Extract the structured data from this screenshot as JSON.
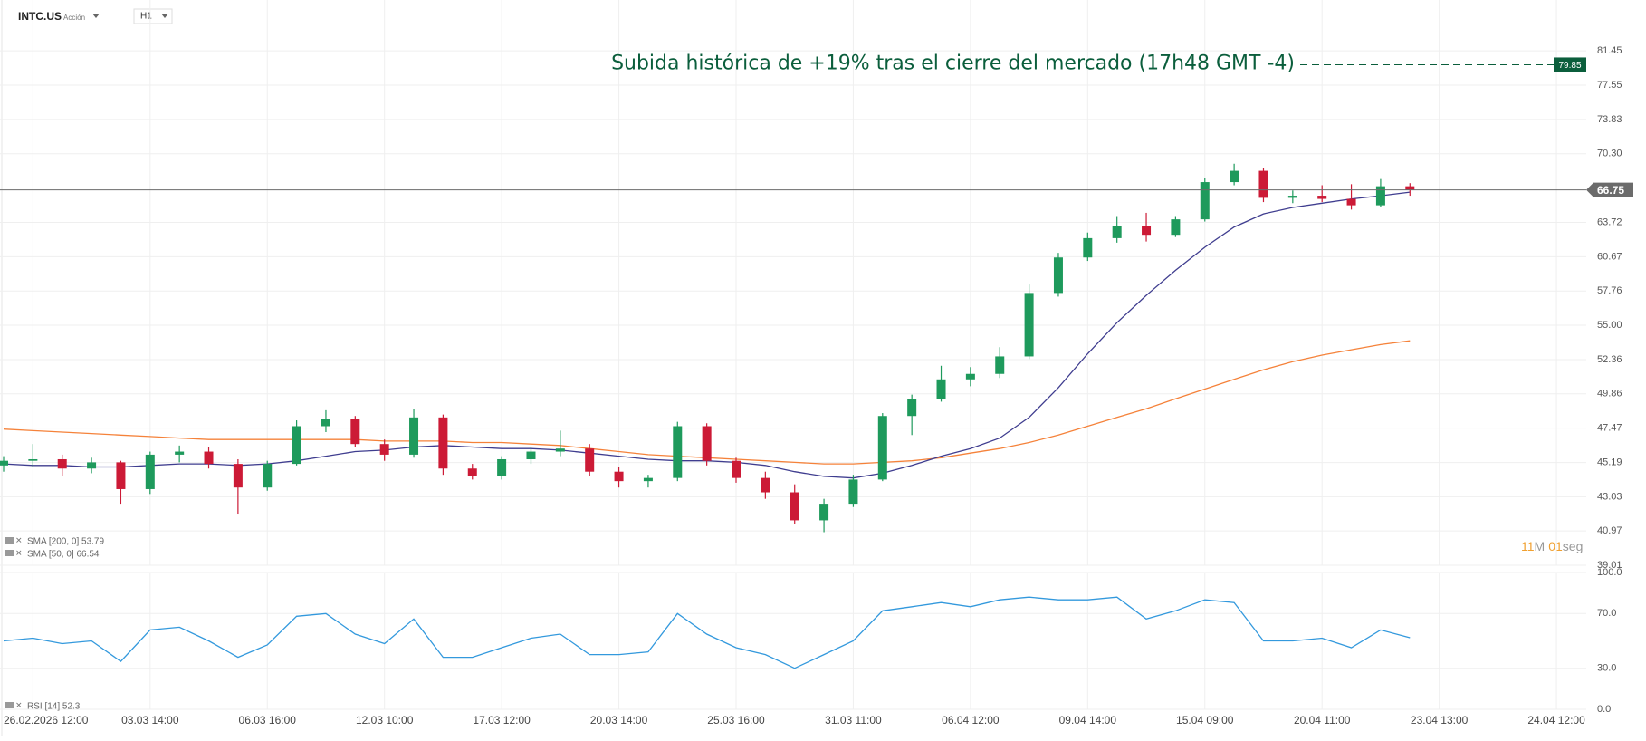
{
  "header": {
    "symbol": "INTC.US",
    "kind": "Acción",
    "timeframe": "H1"
  },
  "timer": {
    "minutes": "11",
    "min_unit": "M",
    "seconds": "01",
    "sec_unit": "seg"
  },
  "chart_data": [
    {
      "type": "candlestick",
      "categories": [
        null,
        "26.02.2026 12:00",
        null,
        null,
        null,
        "03.03 14:00",
        null,
        null,
        null,
        "06.03 16:00",
        null,
        null,
        null,
        "12.03 10:00",
        null,
        null,
        null,
        "17.03 12:00",
        null,
        null,
        null,
        "20.03 14:00",
        null,
        null,
        null,
        "25.03 16:00",
        null,
        null,
        null,
        "31.03 11:00",
        null,
        null,
        null,
        "06.04 12:00",
        null,
        null,
        null,
        "09.04 14:00",
        null,
        null,
        null,
        "15.04 09:00",
        null,
        null,
        null,
        "20.04 11:00",
        null,
        null,
        null,
        "23.04 13:00",
        null,
        null,
        null,
        "24.04 12:00"
      ],
      "open": [
        45.0,
        45.3,
        45.4,
        44.8,
        45.2,
        43.5,
        45.7,
        45.9,
        45.1,
        43.6,
        45.1,
        47.6,
        48.1,
        46.4,
        45.7,
        48.2,
        44.8,
        44.3,
        45.4,
        45.9,
        46.1,
        44.6,
        44.0,
        44.2,
        47.6,
        45.3,
        44.2,
        43.3,
        41.6,
        42.6,
        44.1,
        48.3,
        49.5,
        50.9,
        51.3,
        52.6,
        57.6,
        60.6,
        62.3,
        63.4,
        62.6,
        64.0,
        67.5,
        68.6,
        66.0,
        66.2,
        65.9,
        65.3,
        67.1,
        null,
        null,
        null,
        null,
        null
      ],
      "high": [
        45.6,
        46.4,
        45.7,
        45.5,
        45.3,
        45.9,
        46.3,
        46.2,
        45.4,
        45.3,
        48.0,
        48.7,
        48.3,
        46.7,
        48.8,
        48.4,
        45.1,
        45.6,
        46.2,
        47.3,
        46.4,
        44.9,
        44.4,
        47.9,
        47.8,
        45.5,
        44.6,
        43.8,
        42.9,
        44.4,
        48.5,
        49.8,
        51.9,
        51.8,
        53.3,
        58.3,
        61.0,
        62.8,
        64.3,
        64.6,
        64.3,
        67.9,
        69.3,
        68.9,
        66.7,
        67.2,
        67.3,
        67.8,
        67.4,
        null,
        null,
        null,
        null,
        null
      ],
      "low": [
        44.6,
        44.9,
        44.3,
        44.5,
        42.6,
        43.2,
        45.2,
        44.8,
        42.0,
        43.4,
        45.0,
        47.2,
        46.2,
        45.3,
        45.5,
        44.4,
        44.1,
        44.1,
        45.1,
        45.6,
        44.3,
        43.6,
        43.6,
        44.0,
        45.0,
        43.9,
        42.9,
        41.4,
        40.9,
        42.4,
        44.0,
        47.0,
        49.3,
        50.4,
        51.0,
        52.4,
        57.3,
        60.3,
        61.9,
        62.0,
        62.4,
        63.8,
        67.2,
        65.6,
        65.5,
        65.6,
        64.9,
        65.1,
        66.2,
        null,
        null,
        null,
        null,
        null
      ],
      "close": [
        45.3,
        45.4,
        44.8,
        45.2,
        43.5,
        45.7,
        45.9,
        45.1,
        43.6,
        45.1,
        47.6,
        48.1,
        46.4,
        45.7,
        48.2,
        44.8,
        44.3,
        45.4,
        45.9,
        46.1,
        44.6,
        44.0,
        44.2,
        47.6,
        45.3,
        44.2,
        43.3,
        41.6,
        42.6,
        44.1,
        48.3,
        49.5,
        50.9,
        51.3,
        52.6,
        57.6,
        60.6,
        62.3,
        63.4,
        62.6,
        64.0,
        67.5,
        68.6,
        66.0,
        66.2,
        65.9,
        65.3,
        67.1,
        66.75,
        null,
        null,
        null,
        null,
        null
      ],
      "up_color": "#1e9a5c",
      "down_color": "#cc1a36",
      "series": [
        {
          "name": "SMA [200, 0] 53.79",
          "color": "#f5823a",
          "values": [
            47.4,
            47.3,
            47.2,
            47.1,
            47.0,
            46.9,
            46.8,
            46.7,
            46.7,
            46.7,
            46.7,
            46.7,
            46.7,
            46.6,
            46.6,
            46.6,
            46.5,
            46.5,
            46.4,
            46.3,
            46.1,
            45.9,
            45.7,
            45.6,
            45.5,
            45.4,
            45.3,
            45.2,
            45.1,
            45.1,
            45.2,
            45.3,
            45.5,
            45.8,
            46.1,
            46.5,
            47.0,
            47.6,
            48.2,
            48.8,
            49.5,
            50.2,
            50.9,
            51.6,
            52.2,
            52.7,
            53.1,
            53.5,
            53.79,
            null,
            null,
            null,
            null,
            null
          ]
        },
        {
          "name": "SMA [50, 0] 66.54",
          "color": "#3f3d8f",
          "values": [
            45.1,
            45.0,
            45.0,
            44.9,
            44.9,
            45.0,
            45.1,
            45.1,
            45.0,
            45.1,
            45.3,
            45.6,
            45.9,
            46.0,
            46.2,
            46.3,
            46.2,
            46.1,
            46.1,
            46.0,
            45.8,
            45.6,
            45.4,
            45.3,
            45.3,
            45.2,
            45.0,
            44.6,
            44.3,
            44.2,
            44.5,
            45.0,
            45.6,
            46.1,
            46.8,
            48.2,
            50.3,
            52.8,
            55.2,
            57.4,
            59.5,
            61.5,
            63.3,
            64.5,
            65.1,
            65.5,
            65.9,
            66.2,
            66.54,
            null,
            null,
            null,
            null,
            null
          ]
        }
      ],
      "ylim": [
        39.01,
        87.6
      ],
      "log_scale": true,
      "grid": true,
      "yticks": [
        81.45,
        77.55,
        73.83,
        {
          "value": 70.3,
          "label": "70.30"
        },
        63.72,
        60.67,
        57.76,
        {
          "value": 55,
          "label": "55.00"
        },
        52.36,
        49.86,
        47.47,
        45.19,
        43.03,
        40.97,
        39.01
      ],
      "last_price": 66.75,
      "last_price_color": "#6b6b6b",
      "annotation": {
        "text": "Subida histórica de +19% tras el cierre del mercado (17h48 GMT -4)",
        "value": 79.85,
        "color": "#0b5e3c"
      }
    },
    {
      "type": "line",
      "series": [
        {
          "name": "RSI [14] 52.3",
          "color": "#3399dd",
          "values": [
            50,
            52,
            48,
            50,
            35,
            58,
            60,
            50,
            38,
            47,
            68,
            70,
            55,
            48,
            66,
            38,
            38,
            45,
            52,
            55,
            40,
            40,
            42,
            70,
            55,
            45,
            40,
            30,
            40,
            50,
            72,
            75,
            78,
            75,
            80,
            82,
            80,
            80,
            82,
            66,
            72,
            80,
            78,
            50,
            50,
            52,
            45,
            58,
            52.3,
            null,
            null,
            null,
            null,
            null
          ]
        }
      ],
      "ylim": [
        0,
        100
      ],
      "grid": true,
      "yticks": [
        {
          "value": 100,
          "label": "100.0"
        },
        {
          "value": 70,
          "label": "70.0"
        },
        {
          "value": 30,
          "label": "30.0"
        },
        {
          "value": 0,
          "label": "0.0"
        }
      ]
    }
  ]
}
